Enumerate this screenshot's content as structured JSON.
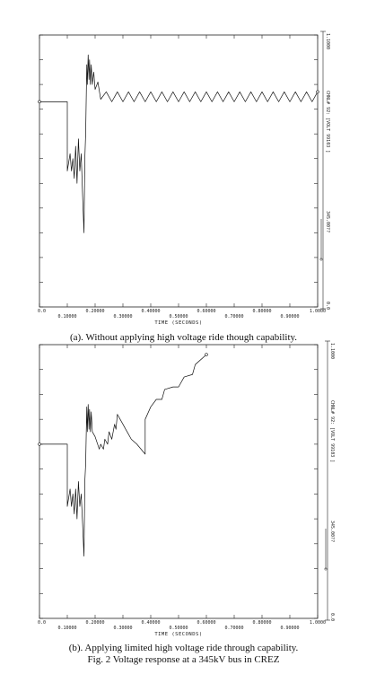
{
  "chart_data": [
    {
      "type": "line",
      "x_tick_labels_top": [
        "0.0",
        "0.20000",
        "0.40000",
        "0.60000",
        "0.80000",
        "1.0000"
      ],
      "x_tick_labels_bottom": [
        "0.10000",
        "0.30000",
        "0.50000",
        "0.70000",
        "0.90000"
      ],
      "xlabel": "TIME (SECONDS)",
      "xlim": [
        0,
        1.0
      ],
      "ylim": [
        0,
        1.1
      ],
      "right_top_label": "1.1000",
      "right_bottom_label": "0.0",
      "vertical_label": "CHNL# 92: [VOLT 99103 ]",
      "vertical_label_2": "345.00??",
      "series": [
        {
          "x": [
            0.0,
            0.1,
            0.1,
            0.11,
            0.115,
            0.12,
            0.125,
            0.13,
            0.135,
            0.14,
            0.145,
            0.15,
            0.155,
            0.16,
            0.163,
            0.166,
            0.17,
            0.172,
            0.175,
            0.178,
            0.18,
            0.183,
            0.186,
            0.19,
            0.195,
            0.2,
            0.21,
            0.22,
            0.24,
            0.26,
            0.28,
            0.3,
            0.32,
            0.34,
            0.36,
            0.38,
            0.4,
            0.42,
            0.44,
            0.46,
            0.48,
            0.5,
            0.52,
            0.54,
            0.56,
            0.58,
            0.6,
            0.62,
            0.64,
            0.66,
            0.68,
            0.7,
            0.72,
            0.74,
            0.76,
            0.78,
            0.8,
            0.82,
            0.84,
            0.86,
            0.88,
            0.9,
            0.92,
            0.94,
            0.96,
            0.98,
            1.0
          ],
          "y": [
            0.83,
            0.83,
            0.55,
            0.62,
            0.55,
            0.6,
            0.52,
            0.65,
            0.5,
            0.68,
            0.55,
            0.62,
            0.45,
            0.3,
            0.6,
            0.7,
            0.98,
            0.9,
            1.02,
            0.92,
            1.0,
            0.9,
            0.98,
            0.9,
            0.95,
            0.88,
            0.91,
            0.84,
            0.87,
            0.83,
            0.87,
            0.83,
            0.87,
            0.83,
            0.87,
            0.83,
            0.87,
            0.83,
            0.87,
            0.83,
            0.87,
            0.83,
            0.87,
            0.83,
            0.87,
            0.83,
            0.87,
            0.83,
            0.87,
            0.83,
            0.87,
            0.83,
            0.87,
            0.83,
            0.87,
            0.83,
            0.87,
            0.83,
            0.87,
            0.83,
            0.87,
            0.83,
            0.87,
            0.83,
            0.87,
            0.83,
            0.87
          ]
        }
      ]
    },
    {
      "type": "line",
      "x_tick_labels_top": [
        "0.0",
        "0.20000",
        "0.40000",
        "0.60000",
        "0.80000",
        "1.0000"
      ],
      "x_tick_labels_bottom": [
        "0.10000",
        "0.30000",
        "0.50000",
        "0.70000",
        "0.90000"
      ],
      "xlabel": "TIME (SECONDS)",
      "xlim": [
        0,
        1.0
      ],
      "ylim": [
        0,
        1.1
      ],
      "right_top_label": "1.1000",
      "right_bottom_label": "0.0",
      "vertical_label": "CHNL# 92: [VOLT 99103 ]",
      "vertical_label_2": "345.00??",
      "series": [
        {
          "x": [
            0.0,
            0.1,
            0.1,
            0.11,
            0.115,
            0.12,
            0.125,
            0.13,
            0.135,
            0.14,
            0.145,
            0.15,
            0.155,
            0.16,
            0.163,
            0.166,
            0.17,
            0.172,
            0.175,
            0.178,
            0.18,
            0.183,
            0.186,
            0.19,
            0.2,
            0.215,
            0.22,
            0.23,
            0.235,
            0.245,
            0.25,
            0.26,
            0.27,
            0.275,
            0.28,
            0.29,
            0.3,
            0.31,
            0.32,
            0.33,
            0.35,
            0.38,
            0.38,
            0.4,
            0.42,
            0.44,
            0.45,
            0.48,
            0.5,
            0.52,
            0.55,
            0.56,
            0.6
          ],
          "y": [
            0.7,
            0.7,
            0.45,
            0.52,
            0.45,
            0.5,
            0.42,
            0.52,
            0.4,
            0.55,
            0.45,
            0.5,
            0.38,
            0.25,
            0.55,
            0.62,
            0.85,
            0.75,
            0.86,
            0.76,
            0.84,
            0.75,
            0.83,
            0.75,
            0.73,
            0.68,
            0.7,
            0.68,
            0.72,
            0.7,
            0.75,
            0.72,
            0.78,
            0.76,
            0.82,
            0.8,
            0.78,
            0.76,
            0.74,
            0.72,
            0.7,
            0.66,
            0.8,
            0.85,
            0.88,
            0.88,
            0.92,
            0.93,
            0.93,
            0.97,
            0.98,
            1.02,
            1.06
          ]
        }
      ]
    }
  ],
  "captions": {
    "a": "(a).  Without applying high voltage ride though capability.",
    "b": "(b).  Applying limited high voltage ride through capability.",
    "fig": "Fig. 2 Voltage response at a 345kV bus in CREZ"
  }
}
